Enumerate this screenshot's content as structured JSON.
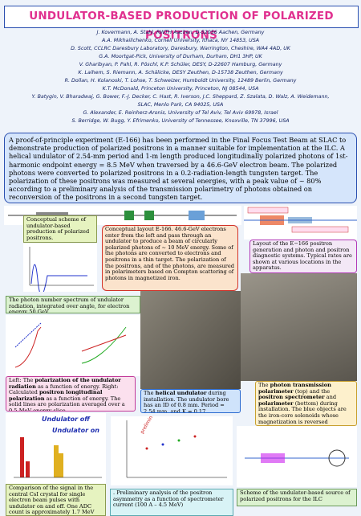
{
  "header": {
    "title": "UNDULATOR-BASED PRODUCTION OF POLARIZED POSITRONS",
    "authors": [
      "J. Kovermann, A. Stahl, RWTH Aachen, D-52056 Aachen, Germany",
      "A.A. Mikhailichenko, Cornell University, Ithaca, NY 14853, USA",
      "D. Scott, CCLRC Daresbury Laboratory, Daresbury, Warrington, Cheshire, WA4 4AD, UK",
      "G.A. Moortgat-Pick, University of Durham, Durham, DH1 3HP, UK",
      "V. Gharibyan, P. Pahl, R. Pöschl, K.P. Schüler, DESY, D-22607 Hamburg, Germany",
      "K. Laihem, S. Riemann, A. Schälicke, DESY Zeuthen, D-15738 Zeuthen, Germany",
      "R. Dollan, H. Kolanoski, T. Lohse, T. Schweizer, Humboldt University, 12489 Berlin, Germany",
      "K.T. McDonald, Princeton University, Princeton, NJ 08544, USA",
      "Y. Batygin, V. Bharadwaj, G. Bower, F.-J. Decker, C. Hast, R. Iverson, J.C. Sheppard, Z. Szalata, D. Walz, A. Weidemann,",
      "SLAC, Menlo Park, CA 94025, USA",
      "G. Alexander, E. Reinherz-Aronis, University of Tel Aviv, Tel Aviv 69978, Israel",
      "S. Berridge, W. Bugg, Y. Efrimenko, University of Tennessee, Knoxville, TN 37996, USA"
    ]
  },
  "abstract": "A proof-of-principle experiment (E-166) has been performed in the Final Focus Test Beam at SLAC to demonstrate production of polarized positrons in a manner suitable for implementation at the ILC.  A helical undulator of 2.54-mm period and 1-m length produced longitudinally polarized photons of 1st-harmonic endpoint energy = 8.5 MeV when traversed by a 46.6-GeV electron beam.  The polarized photons were converted to polarized positrons in a 0.2-radiation-length tungsten target.  The polarization of these positrons was measured at several energies, with a peak value of ~ 80% according to a preliminary analysis of the transmission polarimetry of photons obtained on reconversion of the positrons in a second tungsten target.",
  "captions": {
    "scheme": [
      {
        "text": "Conceptual scheme of undulator-based production of polarized positrons."
      }
    ],
    "layout": [
      {
        "text": "Conceptual layout E-166.  46.6-GeV electrons enter from the left and pass through an undulator to produce a beam of circularly polarized photons of ~ 10 MeV energy.  Some of the photons are converted to electrons and positrons in a thin target.  The polarization of the positrons, and of the photons, are measured in polarimeters based on Compton scattering of photons in magnetized iron."
      }
    ],
    "generation": [
      {
        "text": "Layout of the E−166 positron generation and photon and positron diagnostic systems.  Typical rates are shown at various locations in the apparatus."
      }
    ],
    "spectrum": [
      {
        "text": "The photon number spectrum of undulator radiation, integrated over angle, for electron energy 50 GeV."
      }
    ],
    "polarization": [
      {
        "text": "Left: The "
      },
      {
        "text": "polarization of the undulator radiation",
        "bold": true
      },
      {
        "text": " as a function of energy.  Right: Calculated "
      },
      {
        "text": "positron longitudinal polarization",
        "bold": true
      },
      {
        "text": " as a function of energy.  The solid lines are polarization averaged over a 0.5-MeV energy slice."
      }
    ],
    "undulator": [
      {
        "text": "The "
      },
      {
        "text": "helical undulator",
        "bold": true
      },
      {
        "text": " during installation.  The undulator bore has an ID of 0.8 mm.  Period = 2.54 mm, and K = 0.17."
      }
    ],
    "polarimeter": [
      {
        "text": "The "
      },
      {
        "text": "photon transmission polarimeter",
        "bold": true
      },
      {
        "text": " (top) and the "
      },
      {
        "text": "positron spectrometer",
        "bold": true
      },
      {
        "text": " and "
      },
      {
        "text": "polarimeter",
        "bold": true
      },
      {
        "text": " (bottom) during installation.  The blue objects are the iron-core solenoids whose magnetization is reversed periodically."
      }
    ],
    "csi": [
      {
        "text": "Comparison of the signal in the central CsI crystal for single electron beam pulses with undulator on and off.  One ADC count is approximately 1.7 MeV"
      }
    ],
    "asymmetry": [
      {
        "text": ". Preliminary analysis of the positron asymmetry as a function of spectrometer current (100 A – 4.5 MeV)"
      }
    ],
    "ilc": [
      {
        "text": "Scheme of the undulator-based source of polarized positrons for the ILC"
      }
    ]
  },
  "plot_labels": {
    "off": "Undulator off",
    "on": "Undulator on",
    "preliminary": "preliminary"
  }
}
